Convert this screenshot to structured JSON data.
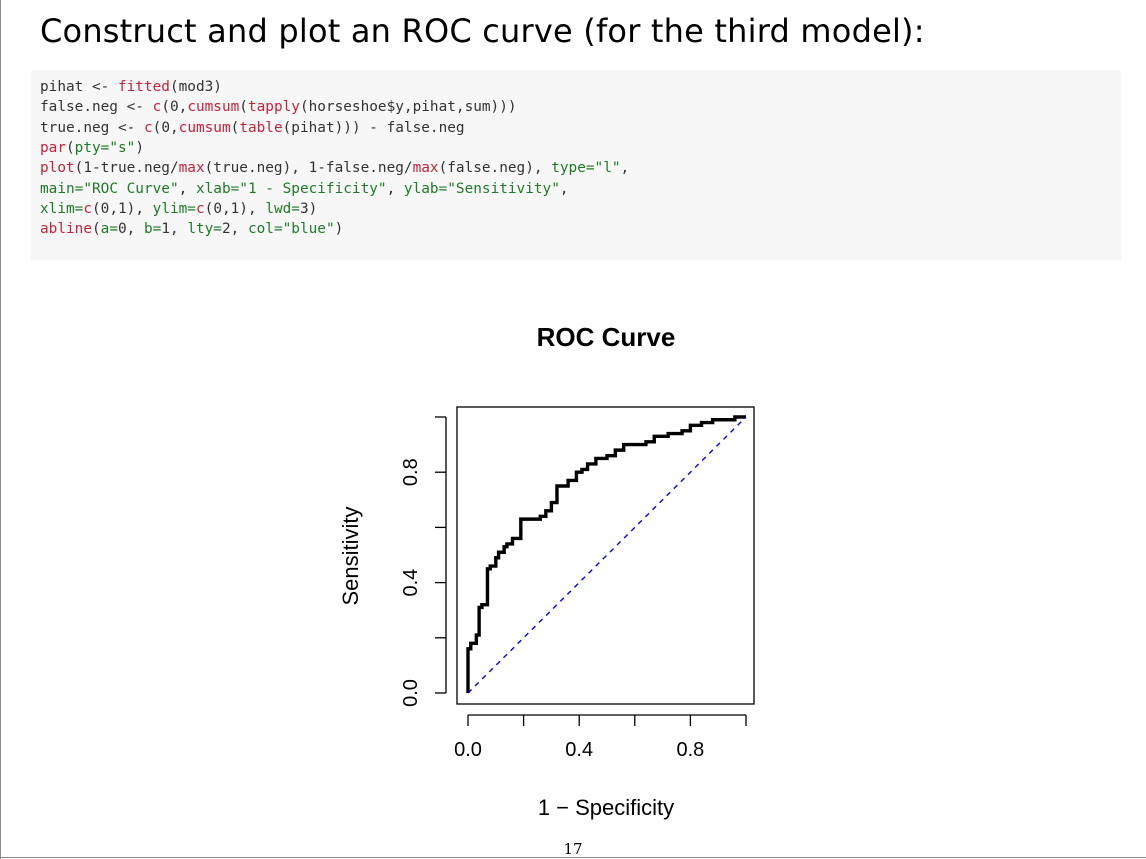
{
  "slide": {
    "title": "Construct and plot an ROC curve (for the third model):",
    "page_number": "17"
  },
  "code": [
    [
      {
        "t": "pihat ",
        "c": "plain"
      },
      {
        "t": "<- ",
        "c": "plain"
      },
      {
        "t": "fitted",
        "c": "fn"
      },
      {
        "t": "(mod3)",
        "c": "plain"
      }
    ],
    [
      {
        "t": "false.neg ",
        "c": "plain"
      },
      {
        "t": "<- ",
        "c": "plain"
      },
      {
        "t": "c",
        "c": "fn"
      },
      {
        "t": "(0,",
        "c": "plain"
      },
      {
        "t": "cumsum",
        "c": "fn"
      },
      {
        "t": "(",
        "c": "plain"
      },
      {
        "t": "tapply",
        "c": "fn"
      },
      {
        "t": "(horseshoe$y,pihat,sum)))",
        "c": "plain"
      }
    ],
    [
      {
        "t": "true.neg ",
        "c": "plain"
      },
      {
        "t": "<- ",
        "c": "plain"
      },
      {
        "t": "c",
        "c": "fn"
      },
      {
        "t": "(0,",
        "c": "plain"
      },
      {
        "t": "cumsum",
        "c": "fn"
      },
      {
        "t": "(",
        "c": "plain"
      },
      {
        "t": "table",
        "c": "fn"
      },
      {
        "t": "(pihat))) - false.neg",
        "c": "plain"
      }
    ],
    [
      {
        "t": "par",
        "c": "fn"
      },
      {
        "t": "(",
        "c": "plain"
      },
      {
        "t": "pty=",
        "c": "arg"
      },
      {
        "t": "\"s\"",
        "c": "str"
      },
      {
        "t": ")",
        "c": "plain"
      }
    ],
    [
      {
        "t": "plot",
        "c": "fn"
      },
      {
        "t": "(1-true.neg/",
        "c": "plain"
      },
      {
        "t": "max",
        "c": "fn"
      },
      {
        "t": "(true.neg), 1-false.neg/",
        "c": "plain"
      },
      {
        "t": "max",
        "c": "fn"
      },
      {
        "t": "(false.neg), ",
        "c": "plain"
      },
      {
        "t": "type=",
        "c": "arg"
      },
      {
        "t": "\"l\"",
        "c": "str"
      },
      {
        "t": ",",
        "c": "plain"
      }
    ],
    [
      {
        "t": "main=",
        "c": "arg"
      },
      {
        "t": "\"ROC Curve\"",
        "c": "str"
      },
      {
        "t": ", ",
        "c": "plain"
      },
      {
        "t": "xlab=",
        "c": "arg"
      },
      {
        "t": "\"1 - Specificity\"",
        "c": "str"
      },
      {
        "t": ", ",
        "c": "plain"
      },
      {
        "t": "ylab=",
        "c": "arg"
      },
      {
        "t": "\"Sensitivity\"",
        "c": "str"
      },
      {
        "t": ",",
        "c": "plain"
      }
    ],
    [
      {
        "t": "xlim=",
        "c": "arg"
      },
      {
        "t": "c",
        "c": "fn"
      },
      {
        "t": "(0,1), ",
        "c": "plain"
      },
      {
        "t": "ylim=",
        "c": "arg"
      },
      {
        "t": "c",
        "c": "fn"
      },
      {
        "t": "(0,1), ",
        "c": "plain"
      },
      {
        "t": "lwd=",
        "c": "arg"
      },
      {
        "t": "3)",
        "c": "plain"
      }
    ],
    [
      {
        "t": "abline",
        "c": "fn"
      },
      {
        "t": "(",
        "c": "plain"
      },
      {
        "t": "a=",
        "c": "arg"
      },
      {
        "t": "0, ",
        "c": "plain"
      },
      {
        "t": "b=",
        "c": "arg"
      },
      {
        "t": "1, ",
        "c": "plain"
      },
      {
        "t": "lty=",
        "c": "arg"
      },
      {
        "t": "2, ",
        "c": "plain"
      },
      {
        "t": "col=",
        "c": "arg"
      },
      {
        "t": "\"blue\"",
        "c": "str"
      },
      {
        "t": ")",
        "c": "plain"
      }
    ]
  ],
  "chart_data": {
    "type": "line",
    "title": "ROC Curve",
    "xlabel": "1 − Specificity",
    "ylabel": "Sensitivity",
    "xlim": [
      0,
      1
    ],
    "ylim": [
      0,
      1
    ],
    "xticks": [
      0.0,
      0.2,
      0.4,
      0.6,
      0.8,
      1.0
    ],
    "xtick_labels": [
      "0.0",
      "",
      "0.4",
      "",
      "0.8",
      ""
    ],
    "yticks": [
      0.0,
      0.2,
      0.4,
      0.6,
      0.8,
      1.0
    ],
    "ytick_labels": [
      "0.0",
      "",
      "0.4",
      "",
      "0.8",
      ""
    ],
    "grid": false,
    "series": [
      {
        "style": "solid",
        "color": "#000000",
        "x": [
          0.0,
          0.0,
          0.01,
          0.01,
          0.03,
          0.03,
          0.04,
          0.04,
          0.05,
          0.05,
          0.07,
          0.07,
          0.08,
          0.08,
          0.1,
          0.1,
          0.11,
          0.11,
          0.13,
          0.13,
          0.14,
          0.14,
          0.16,
          0.16,
          0.19,
          0.19,
          0.26,
          0.26,
          0.28,
          0.28,
          0.3,
          0.3,
          0.32,
          0.32,
          0.36,
          0.36,
          0.39,
          0.39,
          0.41,
          0.41,
          0.43,
          0.43,
          0.46,
          0.46,
          0.5,
          0.5,
          0.53,
          0.53,
          0.56,
          0.56,
          0.64,
          0.64,
          0.67,
          0.67,
          0.72,
          0.72,
          0.77,
          0.77,
          0.8,
          0.8,
          0.84,
          0.84,
          0.88,
          0.88,
          0.96,
          0.96,
          1.0
        ],
        "y": [
          0.0,
          0.16,
          0.16,
          0.18,
          0.18,
          0.21,
          0.21,
          0.31,
          0.31,
          0.32,
          0.32,
          0.45,
          0.45,
          0.46,
          0.46,
          0.49,
          0.49,
          0.51,
          0.51,
          0.53,
          0.53,
          0.54,
          0.54,
          0.56,
          0.56,
          0.63,
          0.63,
          0.64,
          0.64,
          0.66,
          0.66,
          0.69,
          0.69,
          0.75,
          0.75,
          0.77,
          0.77,
          0.8,
          0.8,
          0.81,
          0.81,
          0.83,
          0.83,
          0.85,
          0.85,
          0.86,
          0.86,
          0.88,
          0.88,
          0.9,
          0.9,
          0.91,
          0.91,
          0.93,
          0.93,
          0.94,
          0.94,
          0.95,
          0.95,
          0.97,
          0.97,
          0.98,
          0.98,
          0.99,
          0.99,
          1.0,
          1.0
        ]
      },
      {
        "style": "dashed",
        "color": "#0000ff",
        "x": [
          0,
          1
        ],
        "y": [
          0,
          1
        ]
      }
    ]
  }
}
